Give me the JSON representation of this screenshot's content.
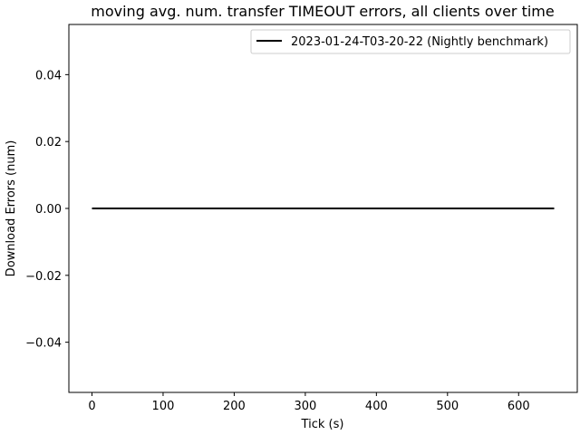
{
  "chart_data": {
    "type": "line",
    "title": "moving avg. num. transfer TIMEOUT errors, all clients over time",
    "xlabel": "Tick (s)",
    "ylabel": "Download Errors (num)",
    "xlim": [
      -32.5,
      682.5
    ],
    "ylim": [
      -0.055,
      0.055
    ],
    "xticks": [
      0,
      100,
      200,
      300,
      400,
      500,
      600
    ],
    "yticks": [
      -0.04,
      -0.02,
      0.0,
      0.02,
      0.04
    ],
    "xtick_labels": [
      "0",
      "100",
      "200",
      "300",
      "400",
      "500",
      "600"
    ],
    "ytick_labels": [
      "−0.04",
      "−0.02",
      "0.00",
      "0.02",
      "0.04"
    ],
    "legend_position": "upper-right",
    "grid": false,
    "series": [
      {
        "name": "2023-01-24-T03-20-22 (Nightly benchmark)",
        "color": "#000000",
        "x": [
          0,
          650
        ],
        "y": [
          0.0,
          0.0
        ]
      }
    ]
  }
}
